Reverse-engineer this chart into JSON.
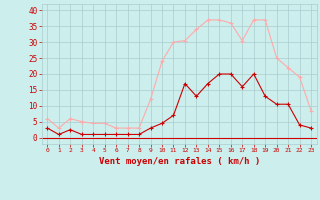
{
  "hours": [
    0,
    1,
    2,
    3,
    4,
    5,
    6,
    7,
    8,
    9,
    10,
    11,
    12,
    13,
    14,
    15,
    16,
    17,
    18,
    19,
    20,
    21,
    22,
    23
  ],
  "wind_mean": [
    3,
    1,
    2.5,
    1,
    1,
    1,
    1,
    1,
    1,
    3,
    4.5,
    7,
    17,
    13,
    17,
    20,
    20,
    16,
    20,
    13,
    10.5,
    10.5,
    4,
    3
  ],
  "wind_gust": [
    6,
    3,
    6,
    5,
    4.5,
    4.5,
    3,
    3,
    3,
    12,
    24,
    30,
    30.5,
    34,
    37,
    37,
    36,
    30.5,
    37,
    37,
    25,
    22,
    19,
    8.5
  ],
  "wind_mean_color": "#cc0000",
  "wind_gust_color": "#ffaaaa",
  "bg_color": "#cceeed",
  "grid_color": "#aacccc",
  "xlabel": "Vent moyen/en rafales ( km/h )",
  "xlabel_color": "#cc0000",
  "tick_color": "#cc0000",
  "ylim": [
    -2,
    42
  ],
  "yticks": [
    0,
    5,
    10,
    15,
    20,
    25,
    30,
    35,
    40
  ],
  "xlim": [
    -0.5,
    23.5
  ]
}
